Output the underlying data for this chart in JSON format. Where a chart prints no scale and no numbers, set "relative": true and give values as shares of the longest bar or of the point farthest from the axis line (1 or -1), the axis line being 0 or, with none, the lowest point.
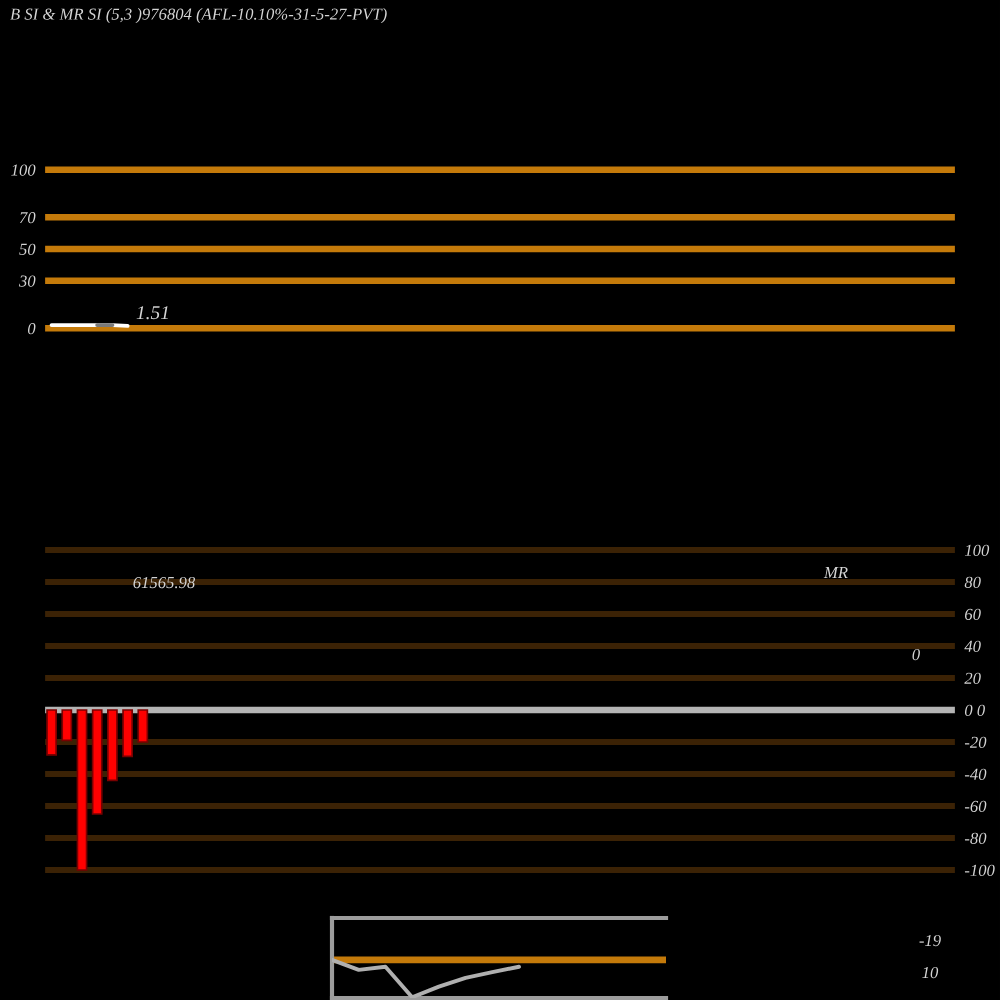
{
  "chart_data": [
    {
      "type": "line",
      "title": "B SI & MR SI (5,3 )976804 (AFL-10.10%-31-5-27-PVT)",
      "categories": [
        null,
        null,
        null,
        null,
        null,
        null,
        null,
        null,
        null,
        null,
        null,
        null,
        null,
        null,
        null,
        null,
        null,
        null,
        null,
        null,
        null,
        null,
        null,
        null,
        null,
        null,
        null,
        null,
        null,
        null,
        null,
        null,
        null,
        null,
        null,
        null,
        null,
        null,
        null,
        null,
        null,
        null,
        null,
        null,
        null,
        null,
        null,
        null,
        null,
        null,
        null,
        null,
        null,
        null,
        null,
        null,
        null,
        null,
        null,
        null
      ],
      "series": [
        {
          "color": "#ffffff",
          "values": [
            2,
            2,
            2,
            2,
            2,
            1.51,
            null,
            null,
            null,
            null,
            null,
            null,
            null,
            null,
            null,
            null,
            null,
            null,
            null,
            null,
            null,
            null,
            null,
            null,
            null,
            null,
            null,
            null,
            null,
            null,
            null,
            null,
            null,
            null,
            null,
            null,
            null,
            null,
            null,
            null,
            null,
            null,
            null,
            null,
            null,
            null,
            null,
            null,
            null,
            null,
            null,
            null,
            null,
            null,
            null,
            null,
            null,
            null,
            null,
            null
          ],
          "value_labels": [
            null,
            null,
            null,
            null,
            null,
            "1.51",
            null,
            null,
            null,
            null,
            null,
            null,
            null,
            null,
            null,
            null,
            null,
            null,
            null,
            null,
            null,
            null,
            null,
            null,
            null,
            null,
            null,
            null,
            null,
            null,
            null,
            null,
            null,
            null,
            null,
            null,
            null,
            null,
            null,
            null,
            null,
            null,
            null,
            null,
            null,
            null,
            null,
            null,
            null,
            null,
            null,
            null,
            null,
            null,
            null,
            null,
            null,
            null,
            null,
            null
          ]
        },
        {
          "color": "#7a7a7a",
          "values": [
            null,
            null,
            null,
            2,
            2,
            null,
            null,
            null,
            null,
            null,
            null,
            null,
            null,
            null,
            null,
            null,
            null,
            null,
            null,
            null,
            null,
            null,
            null,
            null,
            null,
            null,
            null,
            null,
            null,
            null,
            null,
            null,
            null,
            null,
            null,
            null,
            null,
            null,
            null,
            null,
            null,
            null,
            null,
            null,
            null,
            null,
            null,
            null,
            null,
            null,
            null,
            null,
            null,
            null,
            null,
            null,
            null,
            null,
            null,
            null
          ]
        }
      ],
      "ylim": [
        -20,
        120
      ],
      "yticks": [
        0,
        30,
        50,
        70,
        100
      ],
      "ref_lines": [
        {
          "axis": "y",
          "value": 0,
          "color": "#c47a0a"
        },
        {
          "axis": "y",
          "value": 30,
          "color": "#c47a0a"
        },
        {
          "axis": "y",
          "value": 50,
          "color": "#c47a0a"
        },
        {
          "axis": "y",
          "value": 70,
          "color": "#c47a0a"
        },
        {
          "axis": "y",
          "value": 100,
          "color": "#c47a0a"
        }
      ],
      "tick_labels": "y"
    },
    {
      "type": "bar",
      "categories": [
        null,
        null,
        null,
        null,
        null,
        null,
        null,
        null,
        null,
        null,
        null,
        null,
        null,
        null,
        null,
        null,
        null,
        null,
        null,
        null,
        null,
        null,
        null,
        null,
        null,
        null,
        null,
        null,
        null,
        null,
        null,
        null,
        null,
        null,
        null,
        null,
        null,
        null,
        null,
        null,
        null,
        null,
        null,
        null,
        null,
        null,
        null,
        null,
        null,
        null,
        null,
        null,
        null,
        null,
        null,
        null,
        null,
        null,
        null,
        null
      ],
      "values": [
        -28,
        -19,
        -100,
        -65,
        -44,
        -29,
        -20,
        null,
        null,
        null,
        null,
        null,
        null,
        null,
        null,
        null,
        null,
        null,
        null,
        null,
        null,
        null,
        null,
        null,
        null,
        null,
        null,
        null,
        null,
        null,
        null,
        null,
        null,
        null,
        null,
        null,
        null,
        null,
        null,
        null,
        null,
        null,
        null,
        null,
        null,
        null,
        null,
        null,
        null,
        null,
        null,
        null,
        null,
        null,
        null,
        null,
        null,
        null,
        null,
        null
      ],
      "color": "#ff0000",
      "ylim": [
        -110,
        110
      ],
      "yticks": [
        -100,
        -80,
        -60,
        -40,
        -20,
        {
          "value": 0,
          "label": "0 0"
        },
        20,
        40,
        60,
        80,
        100
      ],
      "grid": "y",
      "ref_lines": [
        {
          "axis": "y",
          "value": 0,
          "color": "#b4b4b4"
        }
      ],
      "annotations": [
        "MR",
        "61565.98",
        "0"
      ],
      "tick_labels": "y"
    },
    {
      "type": "line",
      "relative": true,
      "categories": [
        null,
        null,
        null,
        null,
        null,
        null,
        null,
        null,
        null,
        null,
        null,
        null,
        null
      ],
      "series": [
        {
          "color": "#b0b0b0",
          "values": [
            1,
            0.74,
            0.82,
            0.02,
            0.3,
            0.53,
            0.68,
            0.82,
            null,
            null,
            null,
            null,
            null
          ]
        }
      ],
      "ref_lines": [
        {
          "axis": "y",
          "value": 1,
          "color": "#c47a0a"
        }
      ],
      "annotations": [
        "-19",
        "10"
      ],
      "tick_labels": false
    }
  ]
}
